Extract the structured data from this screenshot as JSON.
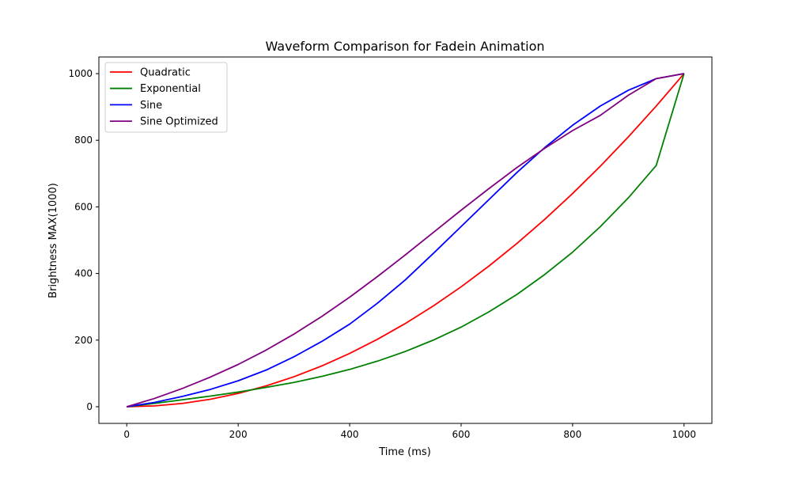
{
  "chart_data": {
    "type": "line",
    "title": "Waveform Comparison for Fadein Animation",
    "xlabel": "Time (ms)",
    "ylabel": "Brightness MAX(1000)",
    "xlim": [
      -50,
      1050
    ],
    "ylim": [
      -50,
      1050
    ],
    "xticks": [
      0,
      200,
      400,
      600,
      800,
      1000
    ],
    "yticks": [
      0,
      200,
      400,
      600,
      800,
      1000
    ],
    "grid": false,
    "legend_position": "upper-left",
    "x": [
      0,
      50,
      100,
      150,
      200,
      250,
      300,
      350,
      400,
      450,
      500,
      550,
      600,
      650,
      700,
      750,
      800,
      850,
      900,
      950,
      1000
    ],
    "series": [
      {
        "name": "Quadratic",
        "color": "#ff0000",
        "values": [
          0,
          2.5,
          10,
          22.5,
          40,
          62.5,
          90,
          122.5,
          160,
          202.5,
          250,
          302.5,
          360,
          422.5,
          490,
          562.5,
          640,
          722.5,
          810,
          902.5,
          1000
        ]
      },
      {
        "name": "Exponential",
        "color": "#008000",
        "values": [
          0,
          10,
          21,
          32,
          44,
          58,
          73,
          91,
          112,
          137,
          166,
          200,
          239,
          285,
          337,
          397,
          464,
          541,
          627,
          724,
          1000
        ]
      },
      {
        "name": "Sine",
        "color": "#0000ff",
        "values": [
          0,
          13,
          31,
          52,
          78,
          110,
          150,
          196,
          248,
          311,
          381,
          460,
          541,
          622,
          703,
          778,
          845,
          903,
          950,
          985,
          1000
        ]
      },
      {
        "name": "Sine Optimized",
        "color": "#800080",
        "values": [
          0,
          25,
          55,
          89,
          127,
          170,
          218,
          271,
          329,
          391,
          456,
          523,
          590,
          655,
          718,
          776,
          829,
          875,
          935,
          985,
          1000
        ]
      }
    ]
  }
}
